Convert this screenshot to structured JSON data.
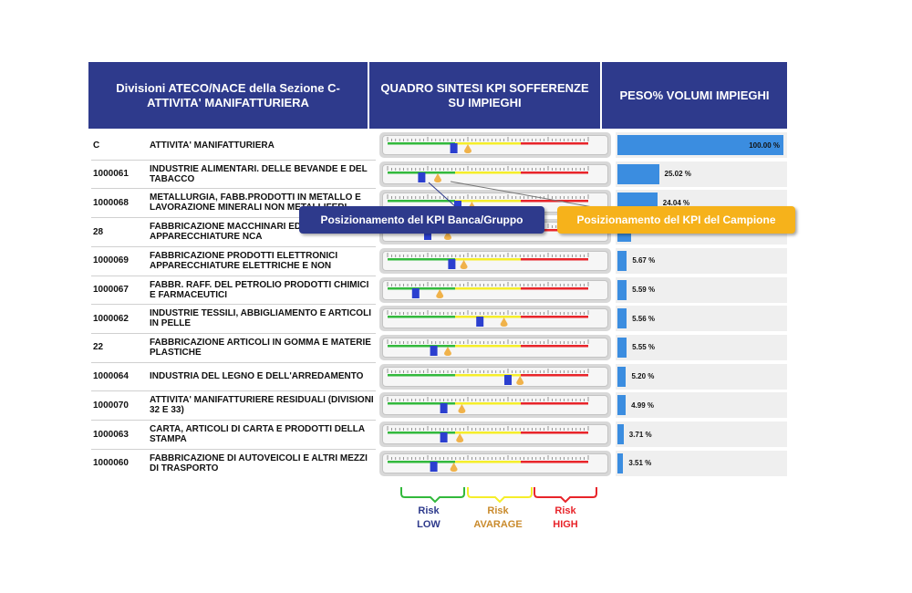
{
  "header": {
    "col1": "Divisioni ATECO/NACE della Sezione C-ATTIVITA' MANIFATTURIERA",
    "col2": "QUADRO SINTESI KPI SOFFERENZE SU IMPIEGHI",
    "col3": "PESO% VOLUMI IMPIEGHI"
  },
  "rows": [
    {
      "code": "C",
      "desc": "ATTIVITA' MANIFATTURIERA",
      "weight": "100.00 %",
      "weight_value": 100.0,
      "kpi_bank": 0.33,
      "kpi_sample": 0.4
    },
    {
      "code": "1000061",
      "desc": "INDUSTRIE ALIMENTARI. DELLE BEVANDE E DEL TABACCO",
      "weight": "25.02 %",
      "weight_value": 25.02,
      "kpi_bank": 0.17,
      "kpi_sample": 0.25
    },
    {
      "code": "1000068",
      "desc": "METALLURGIA, FABB.PRODOTTI IN METALLO E LAVORAZIONE MINERALI NON METALLIFERI",
      "weight": "24.04 %",
      "weight_value": 24.04,
      "kpi_bank": 0.35,
      "kpi_sample": 0.42
    },
    {
      "code": "28",
      "desc": "FABBRICAZIONE MACCHINARI ED APPARECCHIATURE NCA",
      "weight": "",
      "weight_value": 8.5,
      "kpi_bank": 0.2,
      "kpi_sample": 0.3
    },
    {
      "code": "1000069",
      "desc": "FABBRICAZIONE PRODOTTI ELETTRONICI APPARECCHIATURE ELETTRICHE E NON",
      "weight": "5.67 %",
      "weight_value": 5.67,
      "kpi_bank": 0.32,
      "kpi_sample": 0.38
    },
    {
      "code": "1000067",
      "desc": "FABBR. RAFF. DEL PETROLIO PRODOTTI CHIMICI E FARMACEUTICI",
      "weight": "5.59 %",
      "weight_value": 5.59,
      "kpi_bank": 0.14,
      "kpi_sample": 0.26
    },
    {
      "code": "1000062",
      "desc": "INDUSTRIE TESSILI, ABBIGLIAMENTO E ARTICOLI IN PELLE",
      "weight": "5.56 %",
      "weight_value": 5.56,
      "kpi_bank": 0.46,
      "kpi_sample": 0.58
    },
    {
      "code": "22",
      "desc": "FABBRICAZIONE ARTICOLI IN GOMMA E MATERIE PLASTICHE",
      "weight": "5.55 %",
      "weight_value": 5.55,
      "kpi_bank": 0.23,
      "kpi_sample": 0.3
    },
    {
      "code": "1000064",
      "desc": "INDUSTRIA DEL LEGNO E DELL'ARREDAMENTO",
      "weight": "5.20 %",
      "weight_value": 5.2,
      "kpi_bank": 0.6,
      "kpi_sample": 0.66
    },
    {
      "code": "1000070",
      "desc": "ATTIVITA' MANIFATTURIERE RESIDUALI (DIVISIONI 32 E 33)",
      "weight": "4.99 %",
      "weight_value": 4.99,
      "kpi_bank": 0.28,
      "kpi_sample": 0.37
    },
    {
      "code": "1000063",
      "desc": "CARTA, ARTICOLI DI CARTA E PRODOTTI DELLA STAMPA",
      "weight": "3.71 %",
      "weight_value": 3.71,
      "kpi_bank": 0.28,
      "kpi_sample": 0.36
    },
    {
      "code": "1000060",
      "desc": "FABBRICAZIONE DI AUTOVEICOLI E ALTRI MEZZI DI TRASPORTO",
      "weight": "3.51 %",
      "weight_value": 3.51,
      "kpi_bank": 0.23,
      "kpi_sample": 0.33
    }
  ],
  "callouts": {
    "bank": "Posizionamento del KPI Banca/Gruppo",
    "sample": "Posizionamento del KPI del Campione"
  },
  "legend": {
    "low": {
      "line1": "Risk",
      "line2": "LOW"
    },
    "avg": {
      "line1": "Risk",
      "line2": "AVARAGE"
    },
    "high": {
      "line1": "Risk",
      "line2": "HIGH"
    }
  },
  "colors": {
    "header": "#2e3a8c",
    "bar": "#3b8de0",
    "green": "#32b93c",
    "yellow": "#f5ee2a",
    "red": "#e8242a",
    "bank_marker": "#2b3fcf",
    "sample_marker": "#f0b24a",
    "callout_bank": "#2e3a8c",
    "callout_sample": "#f6b21b"
  }
}
